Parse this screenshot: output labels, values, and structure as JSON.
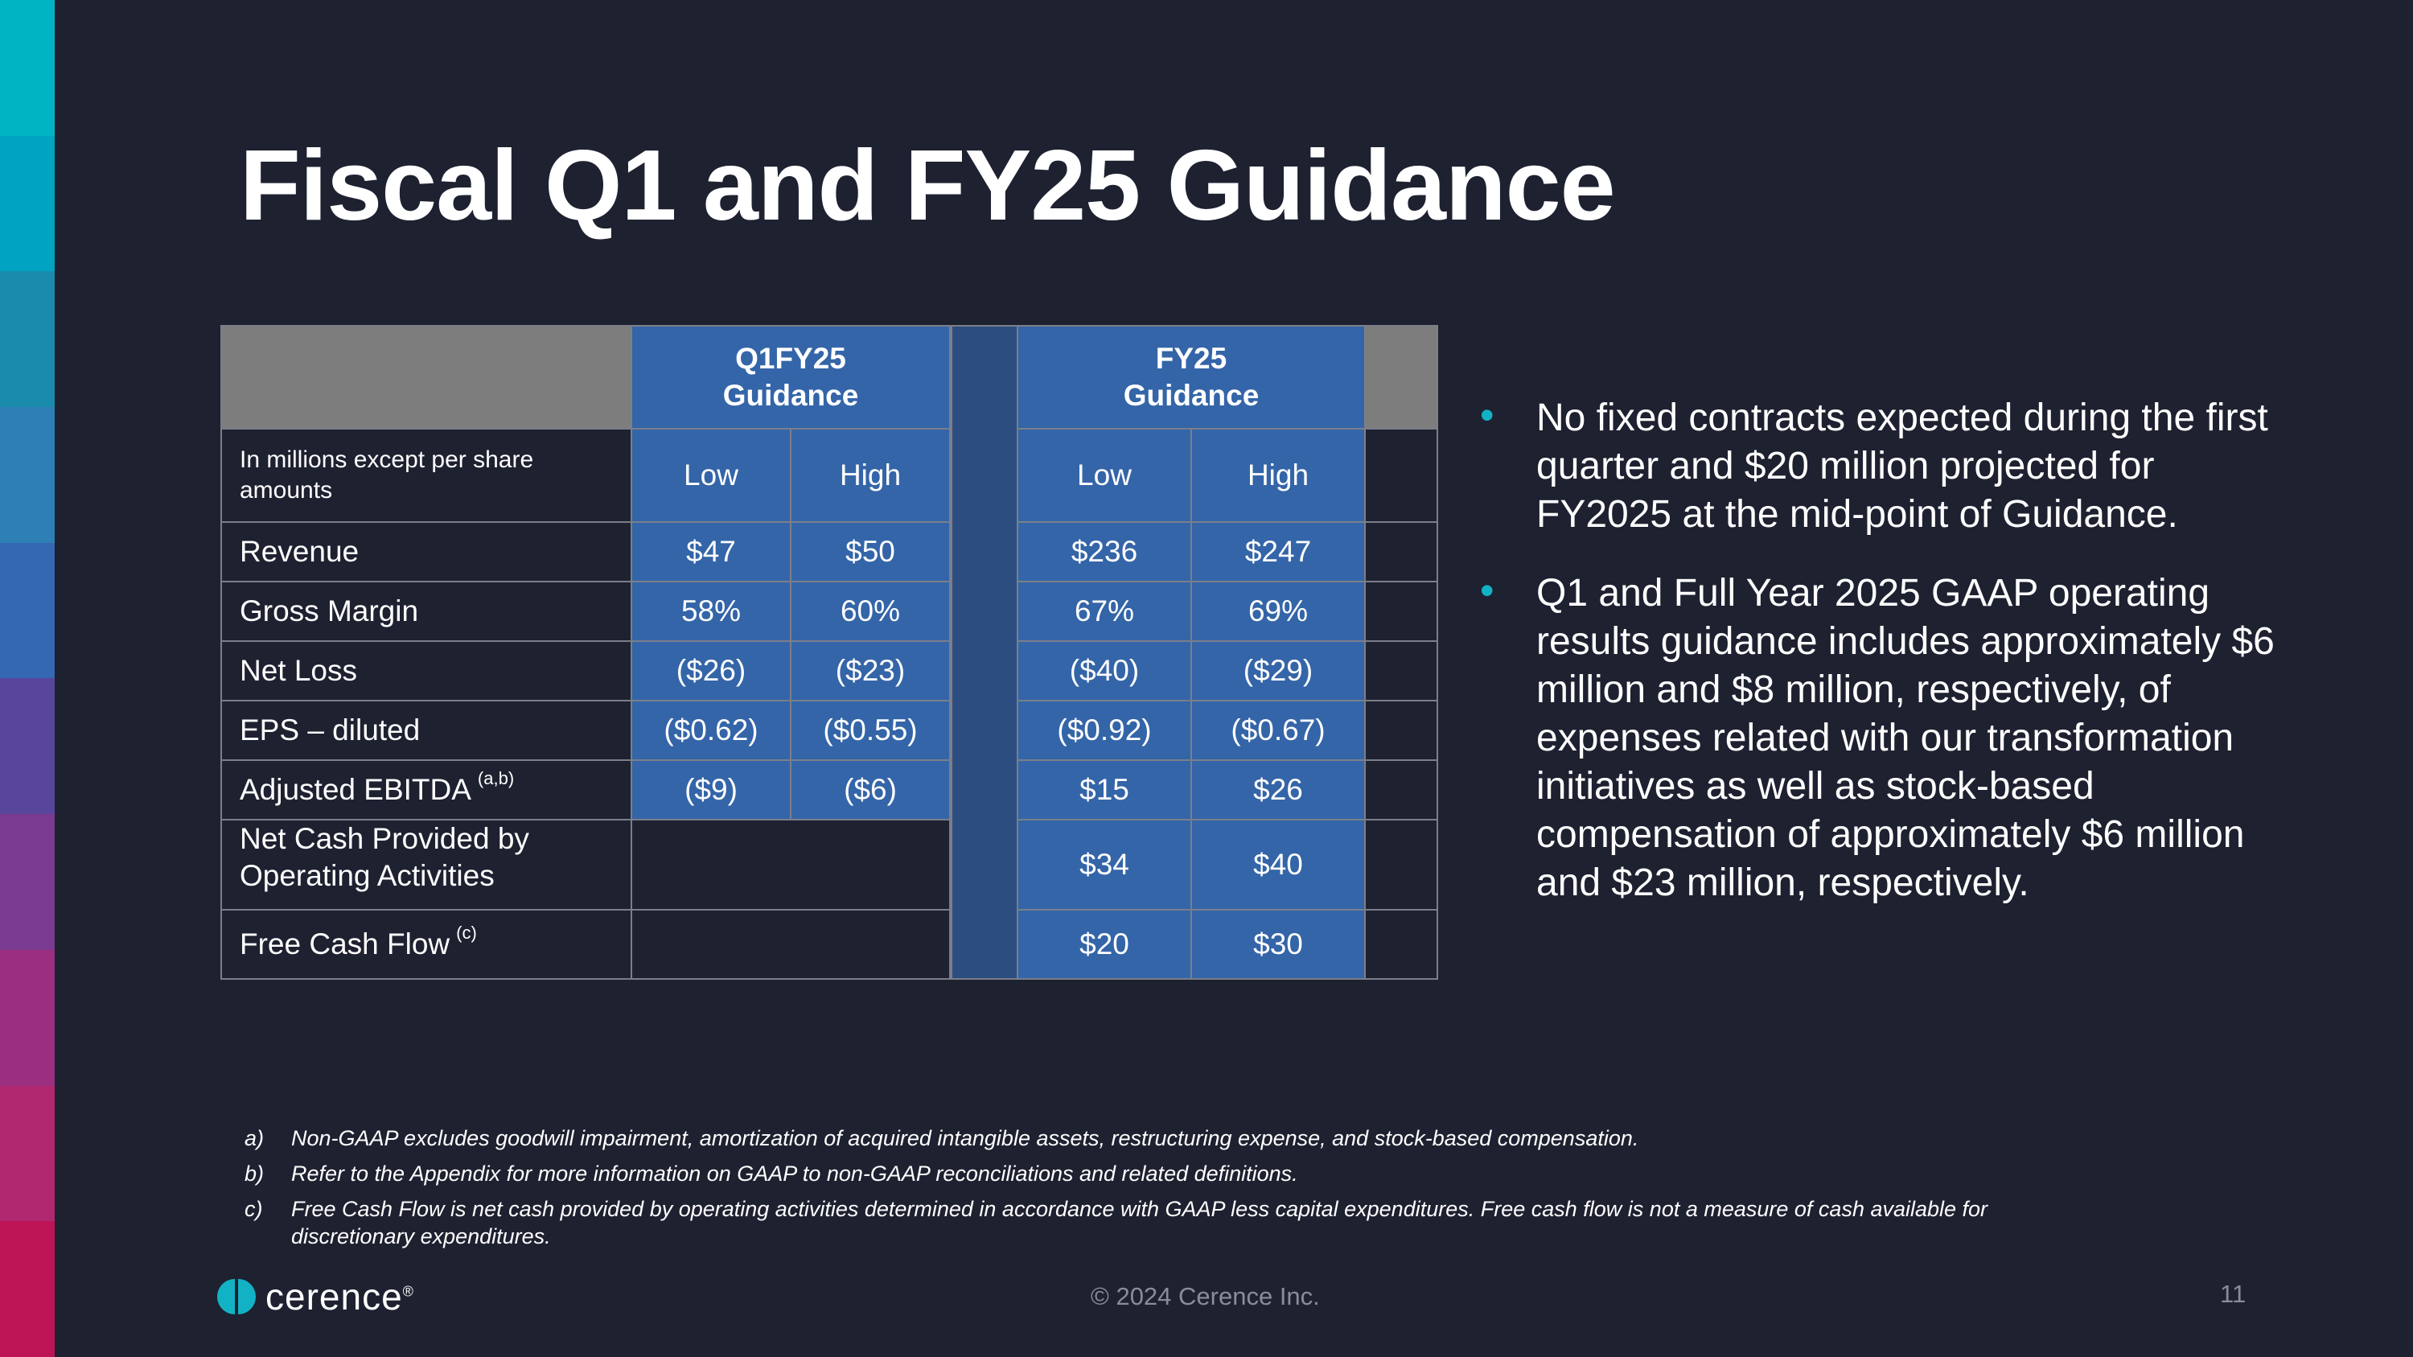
{
  "stripe_colors": [
    "#00b4c3",
    "#00a3c2",
    "#1a8bac",
    "#2e7fb5",
    "#3568b2",
    "#58459c",
    "#7a3a8f",
    "#9a2f80",
    "#b02870",
    "#bd1456"
  ],
  "title": "Fiscal Q1 and FY25 Guidance",
  "table": {
    "q1_header_line1": "Q1FY25",
    "q1_header_line2": "Guidance",
    "fy_header_line1": "FY25",
    "fy_header_line2": "Guidance",
    "units_label": "In millions except per share amounts",
    "low": "Low",
    "high": "High",
    "rows": [
      {
        "label": "Revenue",
        "sup": "",
        "q1_low": "$47",
        "q1_high": "$50",
        "fy_low": "$236",
        "fy_high": "$247"
      },
      {
        "label": "Gross Margin",
        "sup": "",
        "q1_low": "58%",
        "q1_high": "60%",
        "fy_low": "67%",
        "fy_high": "69%"
      },
      {
        "label": "Net Loss",
        "sup": "",
        "q1_low": "($26)",
        "q1_high": "($23)",
        "fy_low": "($40)",
        "fy_high": "($29)"
      },
      {
        "label": "EPS – diluted",
        "sup": "",
        "q1_low": "($0.62)",
        "q1_high": "($0.55)",
        "fy_low": "($0.92)",
        "fy_high": "($0.67)"
      },
      {
        "label": "Adjusted EBITDA",
        "sup": "(a,b)",
        "q1_low": "($9)",
        "q1_high": "($6)",
        "fy_low": "$15",
        "fy_high": "$26"
      },
      {
        "label_line1": "Net Cash Provided by",
        "label_line2": "Operating Activities",
        "fy_low": "$34",
        "fy_high": "$40"
      },
      {
        "label": "Free Cash Flow",
        "sup": "(c)",
        "fy_low": "$20",
        "fy_high": "$30"
      }
    ]
  },
  "bullets": [
    "No fixed contracts expected during the first quarter and $20 million projected for FY2025 at the mid-point of Guidance.",
    "Q1 and Full Year 2025 GAAP operating results guidance includes approximately $6 million and $8 million, respectively, of expenses related with our transformation initiatives as well as stock-based compensation of approximately $6 million and $23 million, respectively."
  ],
  "footnotes": [
    {
      "key": "a)",
      "text": "Non-GAAP excludes goodwill impairment, amortization of acquired intangible assets, restructuring expense, and stock-based compensation."
    },
    {
      "key": "b)",
      "text": "Refer to the Appendix for more information on GAAP to non-GAAP reconciliations and related definitions."
    },
    {
      "key": "c)",
      "text": "Free Cash Flow is net cash provided by operating activities determined in accordance with GAAP less capital expenditures.  Free cash flow is not a measure of cash available for discretionary expenditures."
    }
  ],
  "footer": {
    "logo_text": "cerence",
    "logo_mark": "®",
    "copyright": "© 2024 Cerence Inc.",
    "page_number": "11"
  }
}
